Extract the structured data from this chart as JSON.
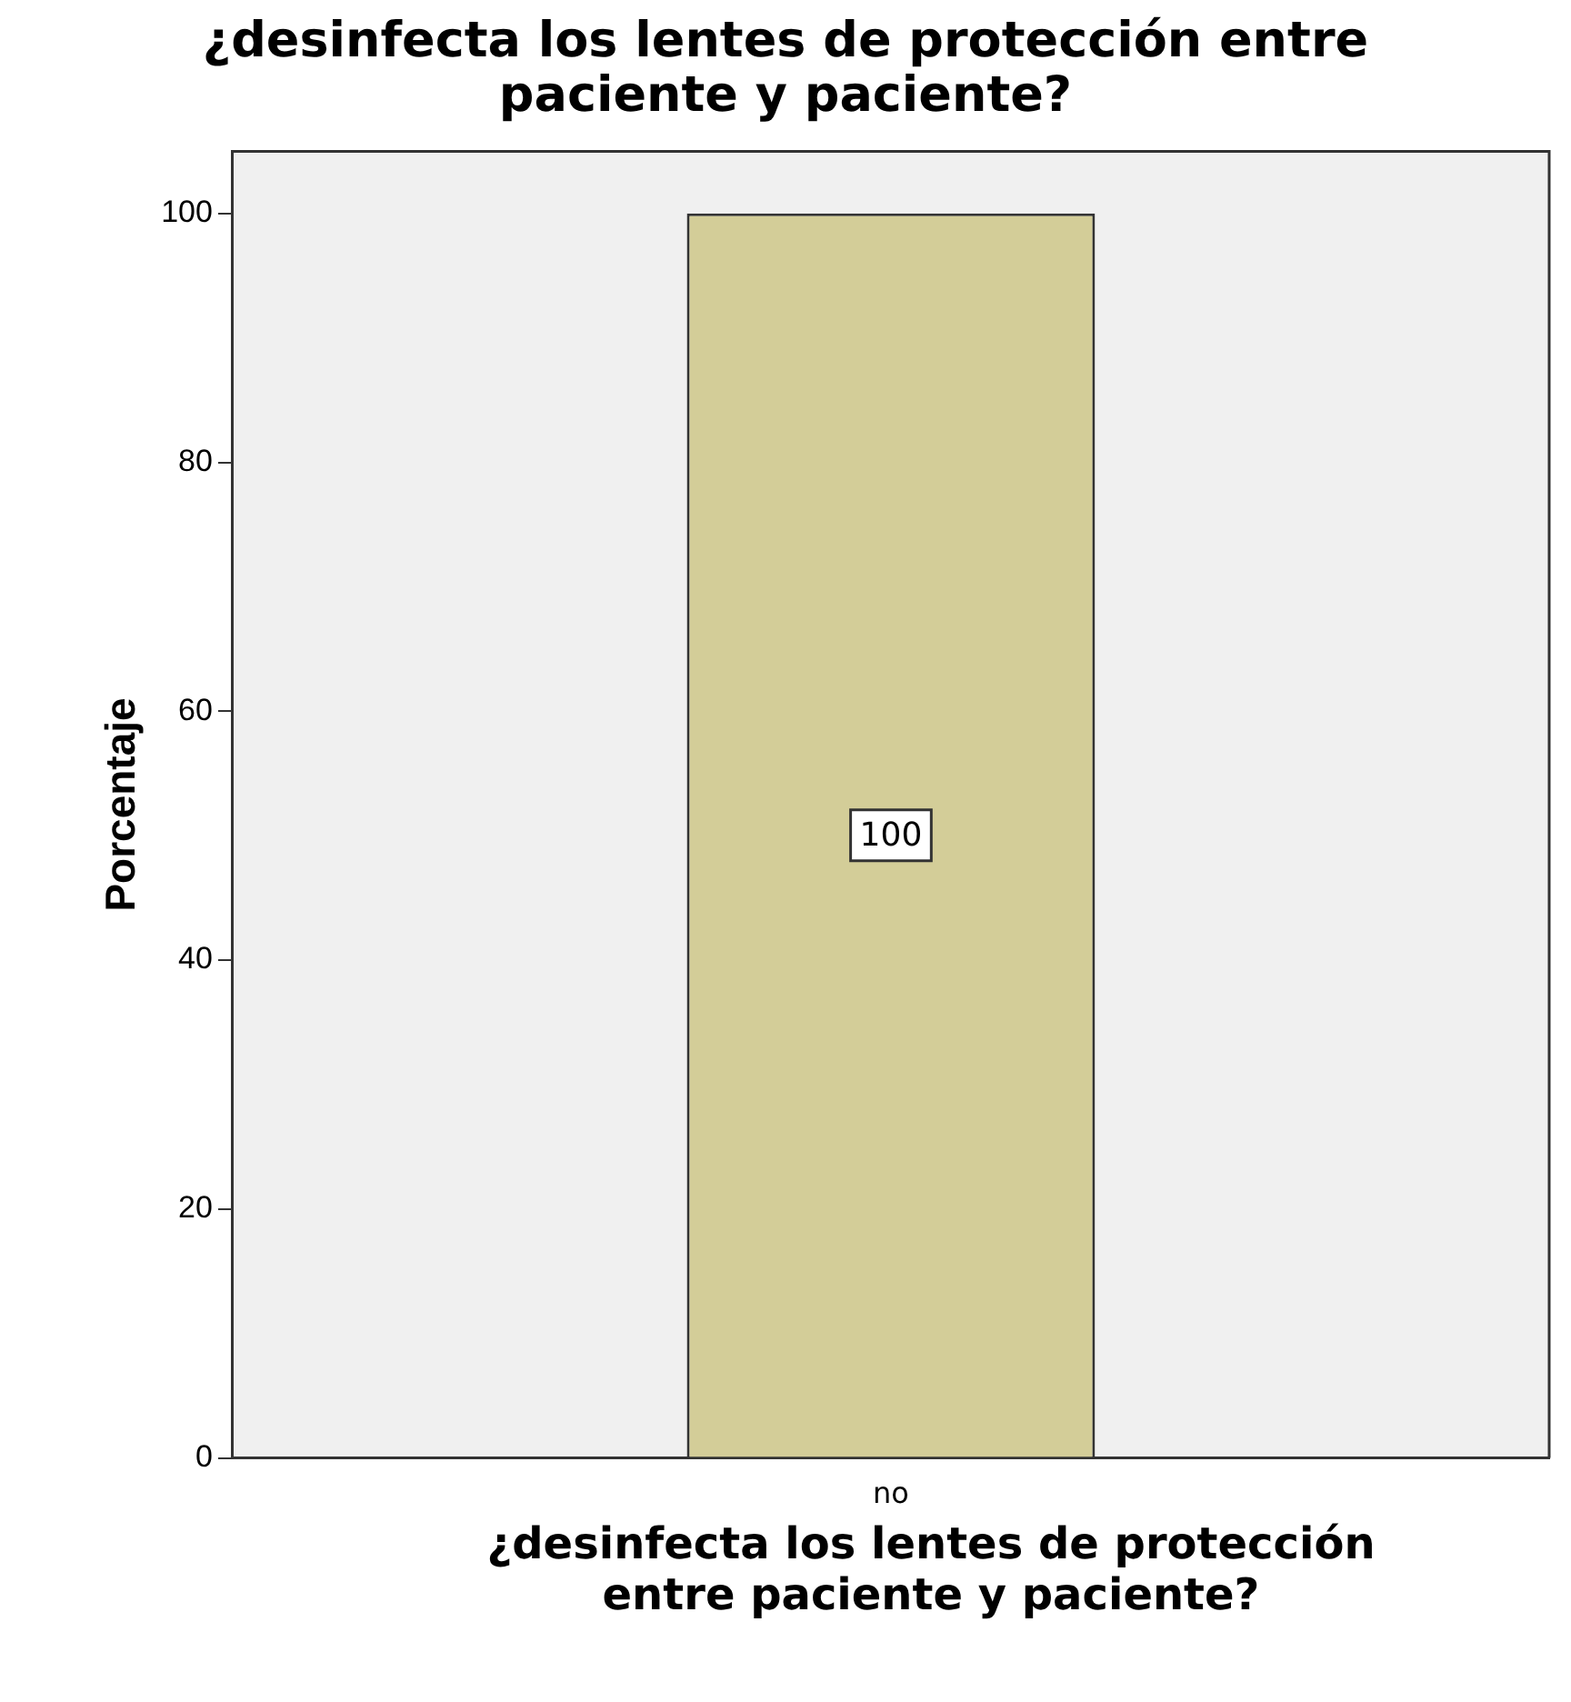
{
  "chart_data": {
    "type": "bar",
    "title": "¿desinfecta los lentes de protección entre paciente y paciente?",
    "xlabel": "¿desinfecta los lentes de protección entre paciente y paciente?",
    "ylabel": "Porcentaje",
    "categories": [
      "no"
    ],
    "values": [
      100
    ],
    "color": "#d3cd98",
    "ylim": [
      0,
      105
    ],
    "yticks": [
      0,
      20,
      40,
      60,
      80,
      100
    ],
    "grid": false,
    "legend": false,
    "data_labels": true
  }
}
